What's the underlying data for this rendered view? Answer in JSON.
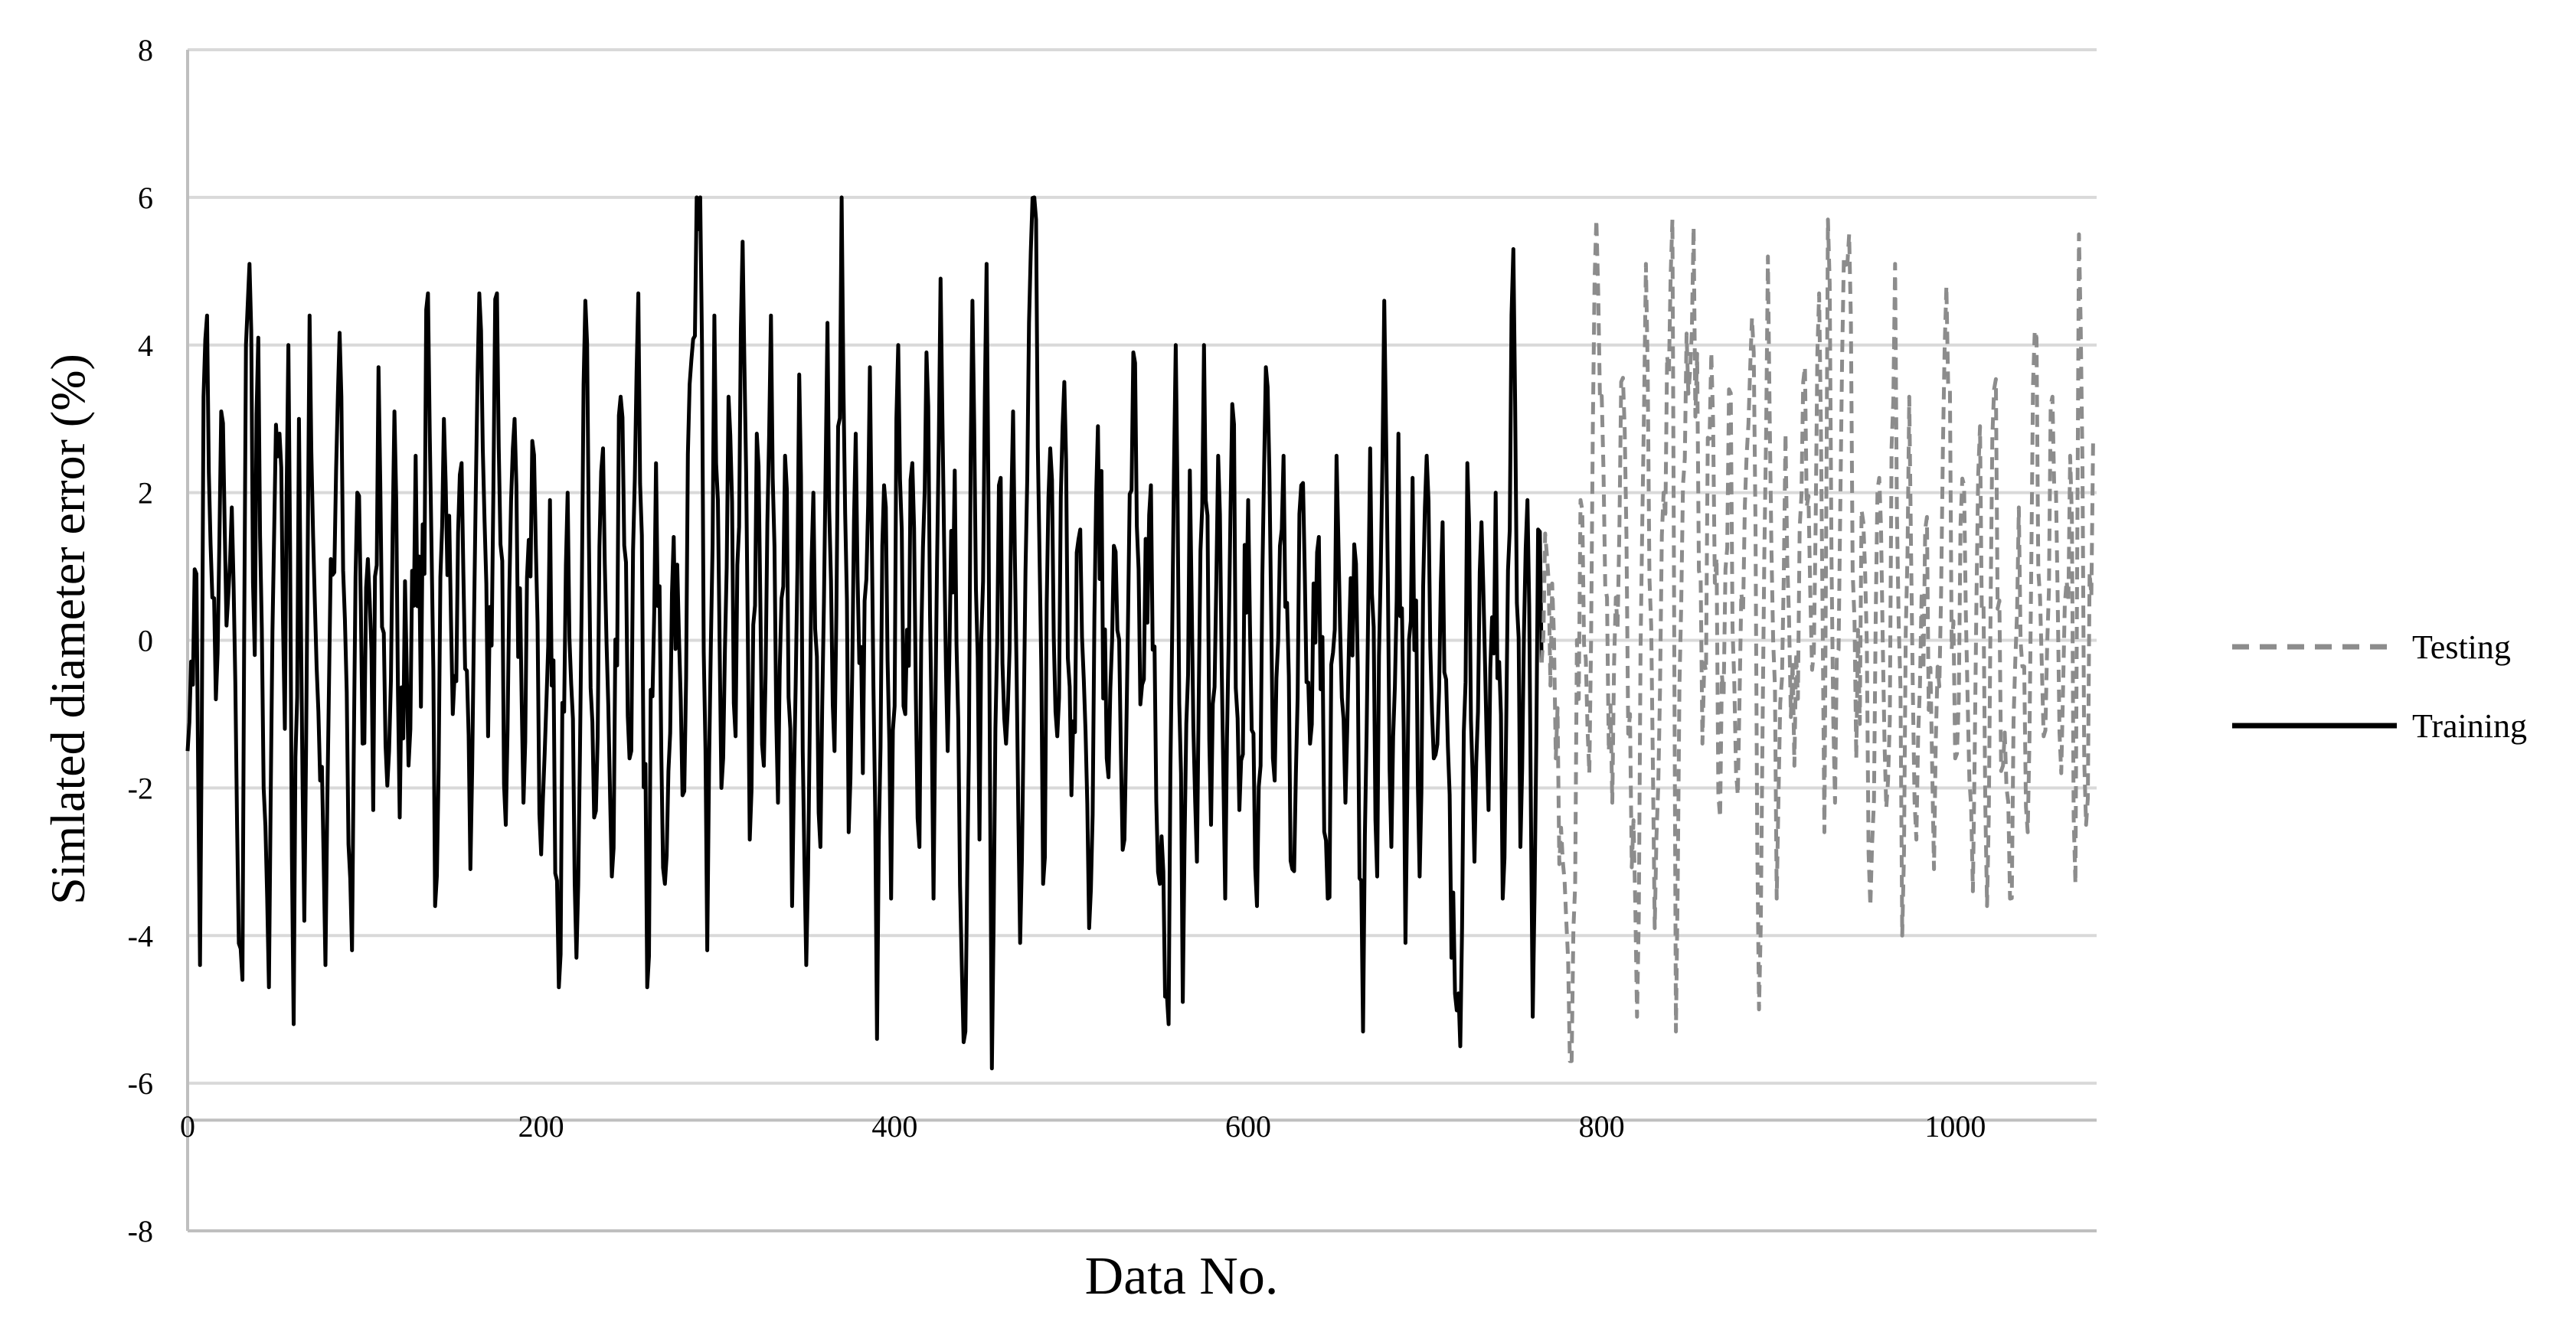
{
  "chart_data": {
    "type": "line",
    "title": "",
    "xlabel": "Data No.",
    "ylabel": "Simlated diameter error (%)",
    "xlim": [
      0,
      1080
    ],
    "ylim": [
      -8,
      8
    ],
    "x_ticks": [
      "0",
      "200",
      "400",
      "600",
      "800",
      "1000"
    ],
    "x_tick_values": [
      0,
      200,
      400,
      600,
      800,
      1000
    ],
    "y_ticks": [
      "8",
      "6",
      "4",
      "2",
      "0",
      "-2",
      "-4",
      "-6",
      "-8"
    ],
    "y_tick_values": [
      8,
      6,
      4,
      2,
      0,
      -2,
      -4,
      -6,
      -8
    ],
    "grid": "horizontal",
    "legend_position": "right",
    "series": [
      {
        "name": "Testing",
        "color": "#8c8c8c",
        "style": "dashed",
        "x_start": 766,
        "x_end": 1078,
        "n_points": 313,
        "approx_range": [
          -5.7,
          5.7
        ],
        "peaks": [
          [
            783,
            -5.7
          ],
          [
            797,
            5.7
          ],
          [
            820,
            -5.1
          ],
          [
            840,
            5.7
          ],
          [
            842,
            -5.3
          ],
          [
            852,
            5.6
          ],
          [
            889,
            -5.0
          ],
          [
            928,
            5.7
          ],
          [
            940,
            5.5
          ],
          [
            970,
            -4.0
          ],
          [
            995,
            4.8
          ],
          [
            1018,
            -3.6
          ],
          [
            1045,
            4.2
          ],
          [
            1070,
            5.5
          ]
        ],
        "points": [
          [
            766,
            -0.3
          ],
          [
            770,
            0.8
          ],
          [
            774,
            -1.6
          ],
          [
            778,
            -3.0
          ],
          [
            783,
            -5.7
          ],
          [
            788,
            1.9
          ],
          [
            793,
            -1.8
          ],
          [
            797,
            5.7
          ],
          [
            801,
            2.3
          ],
          [
            806,
            -2.2
          ],
          [
            811,
            3.5
          ],
          [
            816,
            -1.0
          ],
          [
            820,
            -5.1
          ],
          [
            825,
            5.1
          ],
          [
            830,
            -3.9
          ],
          [
            835,
            2.0
          ],
          [
            840,
            5.7
          ],
          [
            842,
            -5.3
          ],
          [
            846,
            2.1
          ],
          [
            852,
            5.6
          ],
          [
            857,
            -1.4
          ],
          [
            862,
            3.9
          ],
          [
            867,
            -2.4
          ],
          [
            872,
            3.4
          ],
          [
            877,
            -2.1
          ],
          [
            882,
            2.5
          ],
          [
            886,
            3.9
          ],
          [
            889,
            -5.0
          ],
          [
            894,
            5.2
          ],
          [
            899,
            -3.5
          ],
          [
            904,
            2.8
          ],
          [
            909,
            -1.7
          ],
          [
            914,
            3.5
          ],
          [
            919,
            -0.4
          ],
          [
            923,
            4.7
          ],
          [
            926,
            -2.6
          ],
          [
            928,
            5.7
          ],
          [
            932,
            -2.2
          ],
          [
            936,
            3.8
          ],
          [
            940,
            5.5
          ],
          [
            944,
            -1.6
          ],
          [
            948,
            1.6
          ],
          [
            952,
            -3.6
          ],
          [
            957,
            2.2
          ],
          [
            962,
            -1.9
          ],
          [
            966,
            5.1
          ],
          [
            970,
            -4.0
          ],
          [
            974,
            3.3
          ],
          [
            978,
            -2.7
          ],
          [
            983,
            1.5
          ],
          [
            988,
            -3.1
          ],
          [
            995,
            4.8
          ],
          [
            1000,
            -1.6
          ],
          [
            1005,
            2.1
          ],
          [
            1010,
            -3.4
          ],
          [
            1014,
            2.9
          ],
          [
            1018,
            -3.6
          ],
          [
            1022,
            3.4
          ],
          [
            1027,
            -1.7
          ],
          [
            1031,
            -3.5
          ],
          [
            1036,
            1.8
          ],
          [
            1041,
            -2.6
          ],
          [
            1045,
            4.2
          ],
          [
            1050,
            -1.3
          ],
          [
            1055,
            3.3
          ],
          [
            1060,
            -1.8
          ],
          [
            1065,
            2.5
          ],
          [
            1068,
            -3.3
          ],
          [
            1070,
            5.5
          ],
          [
            1074,
            -2.5
          ],
          [
            1078,
            2.7
          ]
        ]
      },
      {
        "name": "Training",
        "color": "#000000",
        "style": "solid",
        "x_start": 0,
        "x_end": 766,
        "n_points": 767,
        "approx_range": [
          -5.8,
          6.0
        ],
        "peaks": [
          [
            7,
            -4.4
          ],
          [
            11,
            4.4
          ],
          [
            35,
            5.1
          ],
          [
            60,
            -5.2
          ],
          [
            290,
            6.0
          ],
          [
            370,
            6.0
          ],
          [
            390,
            -5.4
          ],
          [
            440,
            -5.3
          ],
          [
            455,
            -5.8
          ],
          [
            480,
            5.7
          ],
          [
            555,
            -5.2
          ],
          [
            665,
            -5.3
          ],
          [
            720,
            -5.5
          ],
          [
            750,
            5.3
          ]
        ],
        "points": [
          [
            0,
            -1.5
          ],
          [
            3,
            -0.6
          ],
          [
            5,
            0.9
          ],
          [
            7,
            -4.4
          ],
          [
            9,
            3.3
          ],
          [
            11,
            4.4
          ],
          [
            13,
            1.3
          ],
          [
            16,
            -0.8
          ],
          [
            19,
            3.1
          ],
          [
            22,
            0.2
          ],
          [
            25,
            1.8
          ],
          [
            28,
            -2.5
          ],
          [
            31,
            -4.6
          ],
          [
            33,
            4.0
          ],
          [
            35,
            5.1
          ],
          [
            38,
            -0.2
          ],
          [
            40,
            4.1
          ],
          [
            43,
            -2.0
          ],
          [
            46,
            -4.7
          ],
          [
            49,
            1.5
          ],
          [
            52,
            2.8
          ],
          [
            55,
            -1.2
          ],
          [
            57,
            4.0
          ],
          [
            60,
            -5.2
          ],
          [
            63,
            3.0
          ],
          [
            66,
            -3.8
          ],
          [
            69,
            4.4
          ],
          [
            72,
            0.5
          ],
          [
            75,
            -1.9
          ],
          [
            78,
            -4.4
          ],
          [
            81,
            1.1
          ],
          [
            84,
            2.3
          ],
          [
            87,
            3.3
          ],
          [
            90,
            -0.7
          ],
          [
            93,
            -4.2
          ],
          [
            96,
            2.0
          ],
          [
            99,
            -1.4
          ],
          [
            102,
            1.1
          ],
          [
            105,
            -2.3
          ],
          [
            108,
            3.7
          ],
          [
            111,
            0.1
          ],
          [
            114,
            -1.5
          ],
          [
            117,
            3.1
          ],
          [
            120,
            -2.4
          ],
          [
            123,
            0.8
          ],
          [
            126,
            -1.2
          ],
          [
            129,
            2.5
          ],
          [
            132,
            -0.9
          ],
          [
            136,
            4.7
          ],
          [
            140,
            -3.6
          ],
          [
            145,
            3.0
          ],
          [
            150,
            -1.0
          ],
          [
            155,
            2.4
          ],
          [
            160,
            -3.1
          ],
          [
            165,
            4.7
          ],
          [
            170,
            -1.3
          ],
          [
            175,
            4.7
          ],
          [
            180,
            -2.5
          ],
          [
            185,
            3.0
          ],
          [
            190,
            -2.2
          ],
          [
            195,
            2.7
          ],
          [
            200,
            -2.9
          ],
          [
            205,
            1.9
          ],
          [
            210,
            -4.7
          ],
          [
            215,
            2.0
          ],
          [
            220,
            -4.3
          ],
          [
            225,
            4.6
          ],
          [
            230,
            -2.4
          ],
          [
            235,
            2.6
          ],
          [
            240,
            -3.2
          ],
          [
            245,
            3.3
          ],
          [
            250,
            -1.6
          ],
          [
            255,
            4.7
          ],
          [
            260,
            -4.7
          ],
          [
            265,
            2.4
          ],
          [
            270,
            -3.3
          ],
          [
            275,
            1.4
          ],
          [
            280,
            -2.1
          ],
          [
            285,
            3.8
          ],
          [
            290,
            6.0
          ],
          [
            294,
            -4.2
          ],
          [
            298,
            4.4
          ],
          [
            302,
            -2.0
          ],
          [
            306,
            3.3
          ],
          [
            310,
            -1.3
          ],
          [
            314,
            5.4
          ],
          [
            318,
            -2.7
          ],
          [
            322,
            2.8
          ],
          [
            326,
            -1.7
          ],
          [
            330,
            4.4
          ],
          [
            334,
            -2.2
          ],
          [
            338,
            2.5
          ],
          [
            342,
            -3.6
          ],
          [
            346,
            3.6
          ],
          [
            350,
            -4.4
          ],
          [
            354,
            2.0
          ],
          [
            358,
            -2.8
          ],
          [
            362,
            4.3
          ],
          [
            366,
            -1.5
          ],
          [
            370,
            6.0
          ],
          [
            374,
            -2.6
          ],
          [
            378,
            2.8
          ],
          [
            382,
            -1.8
          ],
          [
            386,
            3.7
          ],
          [
            390,
            -5.4
          ],
          [
            394,
            2.1
          ],
          [
            398,
            -3.5
          ],
          [
            402,
            4.0
          ],
          [
            406,
            -1.0
          ],
          [
            410,
            2.4
          ],
          [
            414,
            -2.8
          ],
          [
            418,
            3.9
          ],
          [
            422,
            -3.5
          ],
          [
            426,
            4.9
          ],
          [
            430,
            -1.5
          ],
          [
            434,
            2.3
          ],
          [
            438,
            -4.4
          ],
          [
            440,
            -5.3
          ],
          [
            444,
            4.6
          ],
          [
            448,
            -2.7
          ],
          [
            452,
            5.1
          ],
          [
            455,
            -5.8
          ],
          [
            459,
            2.1
          ],
          [
            463,
            -1.4
          ],
          [
            467,
            3.1
          ],
          [
            471,
            -4.1
          ],
          [
            476,
            4.3
          ],
          [
            480,
            5.7
          ],
          [
            484,
            -3.3
          ],
          [
            488,
            2.6
          ],
          [
            492,
            -1.3
          ],
          [
            496,
            3.5
          ],
          [
            500,
            -2.1
          ],
          [
            505,
            1.5
          ],
          [
            510,
            -3.9
          ],
          [
            515,
            2.9
          ],
          [
            520,
            -1.6
          ],
          [
            525,
            1.2
          ],
          [
            530,
            -2.7
          ],
          [
            535,
            3.9
          ],
          [
            540,
            -0.6
          ],
          [
            545,
            2.1
          ],
          [
            550,
            -3.3
          ],
          [
            555,
            -5.2
          ],
          [
            559,
            4.0
          ],
          [
            563,
            -4.9
          ],
          [
            567,
            2.3
          ],
          [
            571,
            -3.0
          ],
          [
            575,
            4.0
          ],
          [
            579,
            -2.5
          ],
          [
            583,
            2.5
          ],
          [
            587,
            -3.5
          ],
          [
            591,
            3.2
          ],
          [
            595,
            -2.3
          ],
          [
            600,
            1.9
          ],
          [
            605,
            -3.6
          ],
          [
            610,
            3.7
          ],
          [
            615,
            -1.9
          ],
          [
            620,
            2.5
          ],
          [
            625,
            -3.1
          ],
          [
            630,
            2.1
          ],
          [
            635,
            -1.4
          ],
          [
            640,
            1.4
          ],
          [
            645,
            -3.5
          ],
          [
            650,
            2.5
          ],
          [
            655,
            -2.2
          ],
          [
            660,
            1.3
          ],
          [
            665,
            -5.3
          ],
          [
            669,
            2.6
          ],
          [
            673,
            -3.2
          ],
          [
            677,
            4.6
          ],
          [
            681,
            -2.8
          ],
          [
            685,
            2.8
          ],
          [
            689,
            -4.1
          ],
          [
            693,
            2.2
          ],
          [
            697,
            -3.2
          ],
          [
            701,
            2.5
          ],
          [
            705,
            -1.6
          ],
          [
            710,
            1.6
          ],
          [
            715,
            -4.3
          ],
          [
            720,
            -5.5
          ],
          [
            724,
            2.4
          ],
          [
            728,
            -3.0
          ],
          [
            732,
            1.6
          ],
          [
            736,
            -2.3
          ],
          [
            740,
            2.0
          ],
          [
            744,
            -3.5
          ],
          [
            748,
            1.5
          ],
          [
            750,
            5.3
          ],
          [
            754,
            -2.8
          ],
          [
            758,
            1.9
          ],
          [
            761,
            -5.1
          ],
          [
            764,
            1.5
          ],
          [
            766,
            -0.3
          ]
        ]
      }
    ]
  }
}
